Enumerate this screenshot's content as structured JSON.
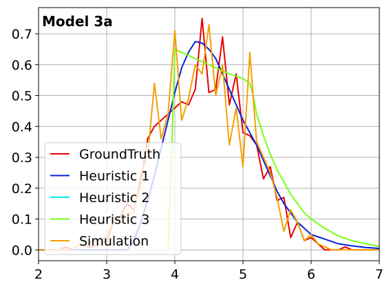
{
  "chart_data": {
    "type": "line",
    "title": "Model 3a",
    "xlabel": "",
    "ylabel": "",
    "xlim": [
      2,
      7
    ],
    "ylim": [
      -0.035,
      0.785
    ],
    "xticks": [
      2,
      3,
      4,
      5,
      6,
      7
    ],
    "yticks": [
      0.0,
      0.1,
      0.2,
      0.3,
      0.4,
      0.5,
      0.6,
      0.7
    ],
    "xtick_labels": [
      "2",
      "3",
      "4",
      "5",
      "6",
      "7"
    ],
    "ytick_labels": [
      "0.0",
      "0.1",
      "0.2",
      "0.3",
      "0.4",
      "0.5",
      "0.6",
      "0.7"
    ],
    "grid": true,
    "legend_position": "lower-left",
    "series": [
      {
        "name": "GroundTruth",
        "color": "#e60000",
        "x": [
          2.0,
          2.1,
          2.2,
          2.3,
          2.4,
          2.5,
          2.6,
          2.7,
          2.8,
          2.9,
          3.0,
          3.1,
          3.2,
          3.3,
          3.4,
          3.5,
          3.6,
          3.7,
          3.8,
          3.9,
          4.0,
          4.1,
          4.2,
          4.3,
          4.4,
          4.5,
          4.6,
          4.7,
          4.8,
          4.9,
          5.0,
          5.1,
          5.2,
          5.3,
          5.4,
          5.5,
          5.6,
          5.7,
          5.8,
          5.9,
          6.0,
          6.1,
          6.2,
          6.3,
          6.4,
          6.5,
          6.6,
          6.7,
          6.8,
          6.9,
          7.0
        ],
        "y": [
          0.0,
          0.0,
          0.0,
          0.0,
          0.01,
          0.0,
          0.02,
          0.01,
          0.01,
          0.02,
          0.03,
          0.09,
          0.11,
          0.15,
          0.13,
          0.22,
          0.36,
          0.4,
          0.42,
          0.44,
          0.46,
          0.48,
          0.47,
          0.52,
          0.75,
          0.51,
          0.52,
          0.69,
          0.47,
          0.57,
          0.38,
          0.37,
          0.34,
          0.23,
          0.27,
          0.16,
          0.17,
          0.04,
          0.09,
          0.03,
          0.04,
          0.02,
          0.0,
          0.0,
          0.0,
          0.01,
          0.0,
          0.0,
          0.0,
          0.0,
          0.0
        ]
      },
      {
        "name": "Heuristic 1",
        "color": "#0022dd",
        "x": [
          2.0,
          2.2,
          2.4,
          2.6,
          2.8,
          3.0,
          3.1,
          3.2,
          3.3,
          3.4,
          3.5,
          3.6,
          3.7,
          3.8,
          3.9,
          4.0,
          4.1,
          4.2,
          4.3,
          4.4,
          4.5,
          4.6,
          4.7,
          4.8,
          4.9,
          5.0,
          5.1,
          5.2,
          5.3,
          5.4,
          5.5,
          5.6,
          5.7,
          5.8,
          5.9,
          6.0,
          6.2,
          6.4,
          6.6,
          6.8,
          7.0
        ],
        "y": [
          0.0,
          0.0,
          0.0,
          0.0,
          0.0,
          0.0,
          0.0,
          0.0,
          0.0,
          0.03,
          0.09,
          0.16,
          0.24,
          0.33,
          0.42,
          0.51,
          0.59,
          0.64,
          0.675,
          0.67,
          0.65,
          0.62,
          0.57,
          0.52,
          0.47,
          0.42,
          0.38,
          0.34,
          0.29,
          0.24,
          0.19,
          0.15,
          0.12,
          0.09,
          0.07,
          0.05,
          0.035,
          0.02,
          0.013,
          0.008,
          0.005
        ]
      },
      {
        "name": "Heuristic 2",
        "color": "#00eeee",
        "x": [],
        "y": []
      },
      {
        "name": "Heuristic 3",
        "color": "#77ff11",
        "x": [
          3.9,
          3.95,
          4.0,
          4.2,
          4.4,
          4.6,
          4.8,
          5.0,
          5.1,
          5.15,
          5.2,
          5.3,
          5.4,
          5.5,
          5.6,
          5.7,
          5.8,
          5.9,
          6.0,
          6.2,
          6.4,
          6.6,
          6.8,
          7.0
        ],
        "y": [
          0.0,
          0.3,
          0.65,
          0.63,
          0.61,
          0.59,
          0.57,
          0.555,
          0.54,
          0.5,
          0.44,
          0.37,
          0.31,
          0.26,
          0.22,
          0.18,
          0.15,
          0.12,
          0.1,
          0.07,
          0.045,
          0.03,
          0.02,
          0.012
        ]
      },
      {
        "name": "Simulation",
        "color": "#f5a000",
        "x": [
          2.0,
          2.1,
          2.2,
          2.3,
          2.4,
          2.5,
          2.6,
          2.7,
          2.8,
          2.9,
          3.0,
          3.1,
          3.2,
          3.3,
          3.4,
          3.5,
          3.6,
          3.7,
          3.8,
          3.9,
          4.0,
          4.1,
          4.2,
          4.3,
          4.4,
          4.5,
          4.6,
          4.7,
          4.8,
          4.9,
          5.0,
          5.1,
          5.2,
          5.3,
          5.4,
          5.5,
          5.6,
          5.7,
          5.8,
          5.9,
          6.0,
          6.1,
          6.2,
          6.3,
          6.4,
          6.5,
          6.6,
          6.7,
          6.8,
          6.9,
          7.0
        ],
        "y": [
          0.0,
          0.0,
          0.0,
          0.0,
          0.0,
          0.0,
          0.02,
          0.01,
          0.03,
          0.02,
          0.05,
          0.09,
          0.1,
          0.12,
          0.12,
          0.25,
          0.3,
          0.54,
          0.36,
          0.44,
          0.71,
          0.42,
          0.49,
          0.6,
          0.57,
          0.73,
          0.5,
          0.6,
          0.34,
          0.46,
          0.27,
          0.64,
          0.35,
          0.3,
          0.25,
          0.17,
          0.06,
          0.13,
          0.09,
          0.03,
          0.05,
          0.02,
          0.01,
          0.0,
          0.0,
          0.0,
          0.0,
          0.0,
          0.0,
          0.0,
          0.0
        ]
      }
    ]
  }
}
